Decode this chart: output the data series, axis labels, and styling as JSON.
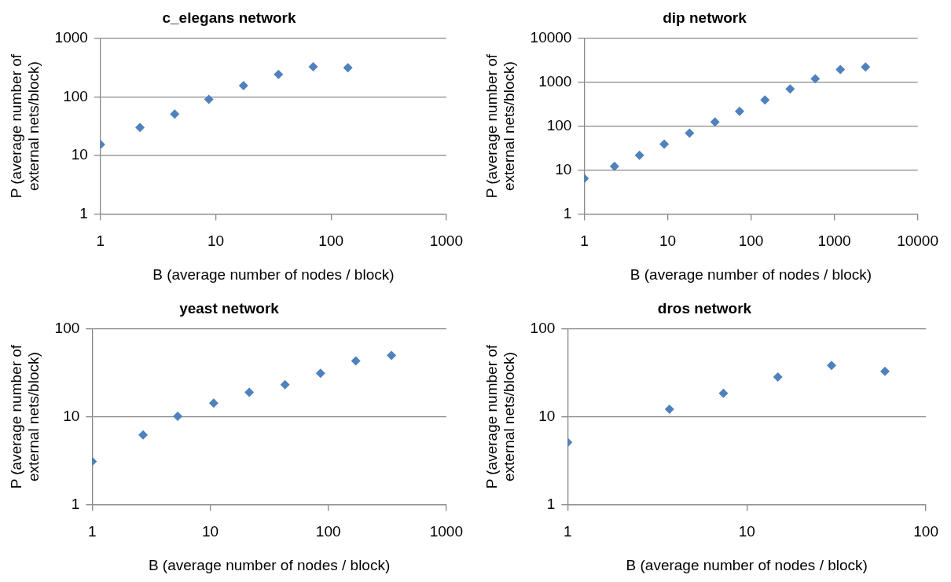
{
  "chart_data": [
    {
      "type": "scatter",
      "title": "c_elegans network",
      "xlabel": "B (average number of nodes / block)",
      "ylabel": "P (average number of external nets/block)",
      "log": "xy",
      "grid": "y",
      "marker": "diamond",
      "series": [
        {
          "color": "#4f81bd",
          "x": [
            1,
            2.2,
            4.4,
            8.7,
            17.4,
            35,
            70,
            140
          ],
          "values": [
            15.4,
            30,
            51,
            91,
            156,
            242,
            326,
            314
          ]
        }
      ],
      "xlim": [
        1,
        1000
      ],
      "xticks": [
        1,
        10,
        100,
        1000
      ],
      "ylim": [
        1,
        1000
      ],
      "yticks": [
        1,
        10,
        100,
        1000
      ]
    },
    {
      "type": "scatter",
      "title": "dip network",
      "xlabel": "B (average number of nodes / block)",
      "ylabel": "P (average number of external nets/block)",
      "log": "xy",
      "grid": "y",
      "marker": "diamond",
      "series": [
        {
          "color": "#4f81bd",
          "x": [
            1,
            2.3,
            4.6,
            9.1,
            18.3,
            37,
            73,
            147,
            295,
            590,
            1180,
            2370
          ],
          "values": [
            6.4,
            12.2,
            21.7,
            39,
            69,
            125,
            218,
            394,
            700,
            1200,
            1940,
            2230
          ]
        }
      ],
      "xlim": [
        1,
        10000
      ],
      "xticks": [
        1,
        10,
        100,
        1000,
        10000
      ],
      "ylim": [
        1,
        10000
      ],
      "yticks": [
        1,
        10,
        100,
        1000,
        10000
      ]
    },
    {
      "type": "scatter",
      "title": "yeast network",
      "xlabel": "B (average number of nodes / block)",
      "ylabel": "P (average number of external nets/block)",
      "log": "xy",
      "grid": "y",
      "marker": "diamond",
      "series": [
        {
          "color": "#4f81bd",
          "x": [
            1,
            2.7,
            5.3,
            10.7,
            21.4,
            43,
            86,
            171,
            343
          ],
          "values": [
            3.1,
            6.2,
            10.1,
            14.3,
            19,
            23.2,
            31.2,
            43.3,
            50
          ]
        }
      ],
      "xlim": [
        1,
        1000
      ],
      "xticks": [
        1,
        10,
        100,
        1000
      ],
      "ylim": [
        1,
        100
      ],
      "yticks": [
        1,
        10,
        100
      ]
    },
    {
      "type": "scatter",
      "title": "dros network",
      "xlabel": "B (average number of nodes / block)",
      "ylabel": "P (average number of external nets/block)",
      "log": "xy",
      "grid": "y",
      "marker": "diamond",
      "series": [
        {
          "color": "#4f81bd",
          "x": [
            1,
            3.7,
            7.4,
            14.9,
            29.7,
            59
          ],
          "values": [
            5.1,
            12.2,
            18.5,
            28.4,
            38.5,
            32.9
          ]
        }
      ],
      "xlim": [
        1,
        100
      ],
      "xticks": [
        1,
        10,
        100
      ],
      "ylim": [
        1,
        100
      ],
      "yticks": [
        1,
        10,
        100
      ]
    }
  ]
}
